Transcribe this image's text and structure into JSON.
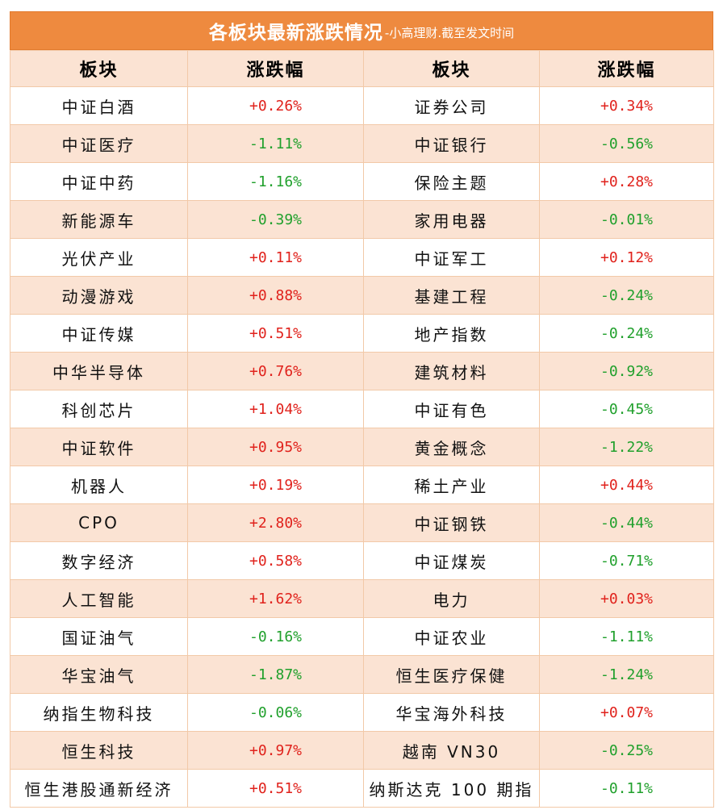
{
  "title": {
    "main": "各板块最新涨跌情况",
    "sub": "-小高理财.截至发文时间"
  },
  "headers": [
    "板块",
    "涨跌幅",
    "板块",
    "涨跌幅"
  ],
  "colors": {
    "header_bar": "#ee8a3f",
    "stripe": "#fbe3d3",
    "up": "#e0221c",
    "down": "#20a02c"
  },
  "rows": [
    {
      "left_name": "中证白酒",
      "left_change": "+0.26%",
      "right_name": "证券公司",
      "right_change": "+0.34%"
    },
    {
      "left_name": "中证医疗",
      "left_change": "-1.11%",
      "right_name": "中证银行",
      "right_change": "-0.56%"
    },
    {
      "left_name": "中证中药",
      "left_change": "-1.16%",
      "right_name": "保险主题",
      "right_change": "+0.28%"
    },
    {
      "left_name": "新能源车",
      "left_change": "-0.39%",
      "right_name": "家用电器",
      "right_change": "-0.01%"
    },
    {
      "left_name": "光伏产业",
      "left_change": "+0.11%",
      "right_name": "中证军工",
      "right_change": "+0.12%"
    },
    {
      "left_name": "动漫游戏",
      "left_change": "+0.88%",
      "right_name": "基建工程",
      "right_change": "-0.24%"
    },
    {
      "left_name": "中证传媒",
      "left_change": "+0.51%",
      "right_name": "地产指数",
      "right_change": "-0.24%"
    },
    {
      "left_name": "中华半导体",
      "left_change": "+0.76%",
      "right_name": "建筑材料",
      "right_change": "-0.92%"
    },
    {
      "left_name": "科创芯片",
      "left_change": "+1.04%",
      "right_name": "中证有色",
      "right_change": "-0.45%"
    },
    {
      "left_name": "中证软件",
      "left_change": "+0.95%",
      "right_name": "黄金概念",
      "right_change": "-1.22%"
    },
    {
      "left_name": "机器人",
      "left_change": "+0.19%",
      "right_name": "稀土产业",
      "right_change": "+0.44%"
    },
    {
      "left_name": "CPO",
      "left_change": "+2.80%",
      "right_name": "中证钢铁",
      "right_change": "-0.44%"
    },
    {
      "left_name": "数字经济",
      "left_change": "+0.58%",
      "right_name": "中证煤炭",
      "right_change": "-0.71%"
    },
    {
      "left_name": "人工智能",
      "left_change": "+1.62%",
      "right_name": "电力",
      "right_change": "+0.03%"
    },
    {
      "left_name": "国证油气",
      "left_change": "-0.16%",
      "right_name": "中证农业",
      "right_change": "-1.11%"
    },
    {
      "left_name": "华宝油气",
      "left_change": "-1.87%",
      "right_name": "恒生医疗保健",
      "right_change": "-1.24%"
    },
    {
      "left_name": "纳指生物科技",
      "left_change": "-0.06%",
      "right_name": "华宝海外科技",
      "right_change": "+0.07%"
    },
    {
      "left_name": "恒生科技",
      "left_change": "+0.97%",
      "right_name": "越南 VN30",
      "right_change": "-0.25%"
    },
    {
      "left_name": "恒生港股通新经济",
      "left_change": "+0.51%",
      "right_name": "纳斯达克 100 期指",
      "right_change": "-0.11%"
    }
  ]
}
